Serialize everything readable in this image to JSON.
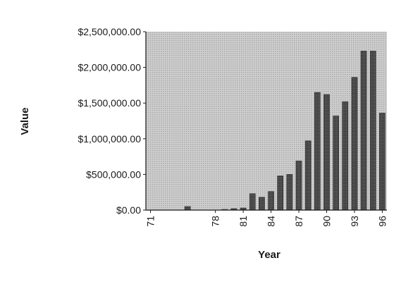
{
  "chart_data": {
    "type": "bar",
    "title": "",
    "xlabel": "Year",
    "ylabel": "Value",
    "ylim": [
      0,
      2500000
    ],
    "yticks": [
      0,
      500000,
      1000000,
      1500000,
      2000000,
      2500000
    ],
    "ytick_labels": [
      "$0.00",
      "$500,000.00",
      "$1,000,000.00",
      "$1,500,000.00",
      "$2,000,000.00",
      "$2,500,000.00"
    ],
    "categories": [
      "71",
      "72",
      "73",
      "74",
      "75",
      "76",
      "77",
      "78",
      "79",
      "80",
      "81",
      "82",
      "83",
      "84",
      "85",
      "86",
      "87",
      "88",
      "89",
      "90",
      "91",
      "92",
      "93",
      "94",
      "95",
      "96"
    ],
    "xtick_labels": [
      "71",
      "78",
      "81",
      "84",
      "87",
      "90",
      "93",
      "96"
    ],
    "values": [
      0,
      0,
      0,
      0,
      50000,
      0,
      0,
      0,
      10000,
      20000,
      30000,
      230000,
      180000,
      260000,
      480000,
      500000,
      690000,
      970000,
      1650000,
      1620000,
      1320000,
      1520000,
      1860000,
      2230000,
      2230000,
      1360000
    ],
    "grid": false,
    "legend": "none",
    "colors": {
      "plot_background": "#c6c6c6",
      "bar_fill": "#404040",
      "axis": "#1a1a1a"
    }
  }
}
